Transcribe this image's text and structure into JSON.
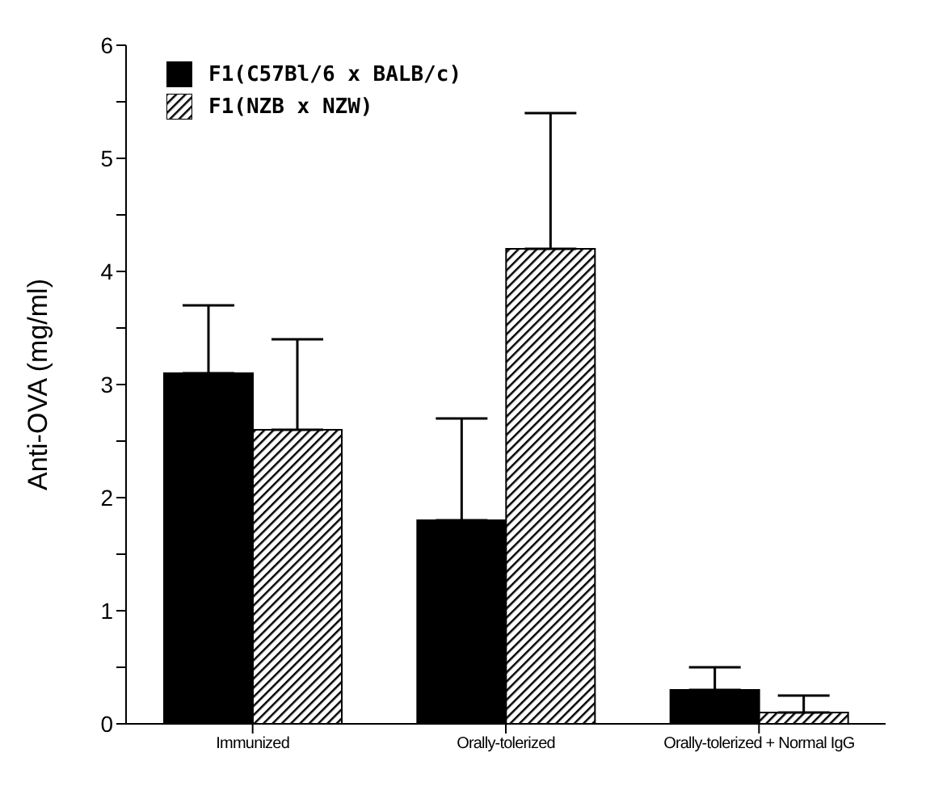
{
  "chart_data": {
    "type": "bar",
    "ylabel": "Anti-OVA (mg/ml)",
    "categories": [
      "Immunized",
      "Orally-tolerized",
      "Orally-tolerized + Normal IgG"
    ],
    "series": [
      {
        "name": "F1(C57Bl/6 x BALB/c)",
        "color": "#000000",
        "values": [
          3.1,
          1.8,
          0.3
        ],
        "errors": [
          [
            3.1,
            3.7
          ],
          [
            1.8,
            2.7
          ],
          [
            0.3,
            0.5
          ]
        ]
      },
      {
        "name": "F1(NZB x NZW)",
        "color": "#000000",
        "values": [
          2.6,
          4.2,
          0.1
        ],
        "errors": [
          [
            2.6,
            3.4
          ],
          [
            4.2,
            5.4
          ],
          [
            0.1,
            0.25
          ]
        ]
      }
    ],
    "ylim": [
      0,
      6
    ],
    "yticks": [
      0,
      {
        "value": 0.5,
        "label": null
      },
      1,
      {
        "value": 1.5,
        "label": null
      },
      2,
      {
        "value": 2.5,
        "label": null
      },
      3,
      {
        "value": 3.5,
        "label": null
      },
      4,
      {
        "value": 4.5,
        "label": null
      },
      5,
      {
        "value": 5.5,
        "label": null
      },
      6
    ],
    "grid": false,
    "legend": "top left"
  }
}
